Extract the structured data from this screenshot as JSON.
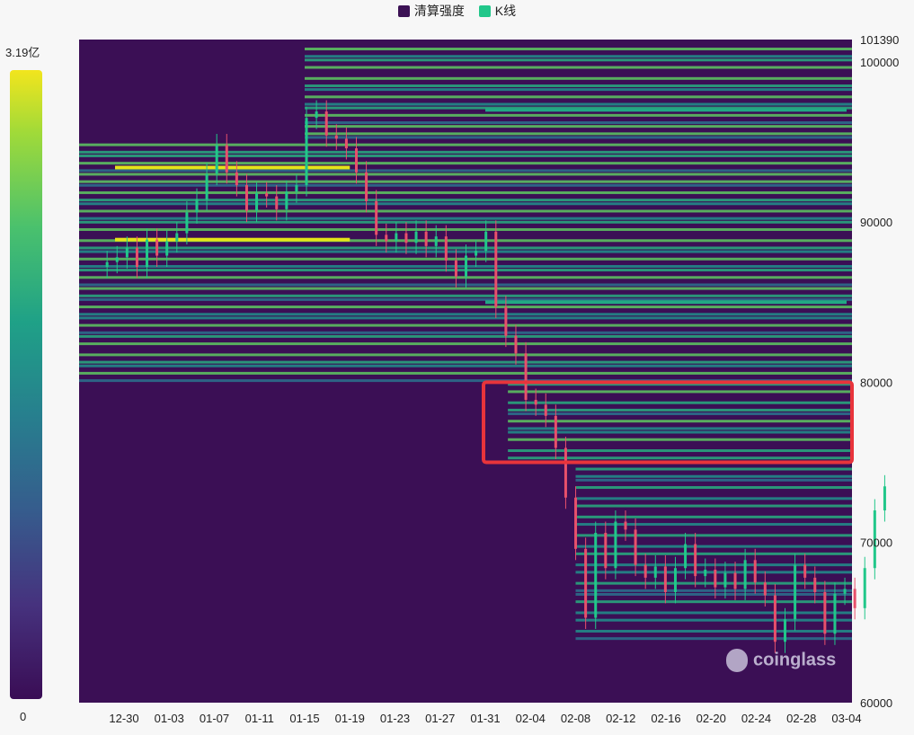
{
  "legend": {
    "items": [
      {
        "label": "清算强度",
        "color": "#3b1154"
      },
      {
        "label": "K线",
        "color": "#21c78a"
      }
    ]
  },
  "colorbar": {
    "max_label": "3.19亿",
    "min_label": "0"
  },
  "watermark": "coinglass",
  "chart_data": {
    "type": "heatmap",
    "title": "",
    "xlabel": "",
    "ylabel": "",
    "x_tick_labels": [
      "12-30",
      "01-03",
      "01-07",
      "01-11",
      "01-15",
      "01-19",
      "01-23",
      "01-27",
      "01-31",
      "02-04",
      "02-08",
      "02-12",
      "02-16",
      "02-20",
      "02-24",
      "02-28",
      "03-04"
    ],
    "y_tick_labels": [
      "101390",
      "100000",
      "90000",
      "80000",
      "70000",
      "60000"
    ],
    "ylim": [
      60000,
      101390
    ],
    "colorscale_range": [
      0,
      319000000
    ],
    "candle_closes": [
      87500,
      87800,
      88400,
      87200,
      88900,
      87900,
      88800,
      89300,
      90600,
      91400,
      93000,
      94800,
      93100,
      92300,
      90700,
      91800,
      91600,
      90800,
      91900,
      92300,
      96500,
      96900,
      95400,
      95200,
      94600,
      93100,
      91300,
      89200,
      88800,
      89300,
      88700,
      89400,
      88500,
      89100,
      87600,
      86600,
      87900,
      88200,
      89400,
      84700,
      82900,
      81800,
      78900,
      78600,
      77900,
      75900,
      72800,
      69600,
      65300,
      70600,
      68400,
      71300,
      70800,
      68600,
      67800,
      68500,
      66900,
      68400,
      69900,
      67900,
      68300,
      67200,
      68100,
      67100,
      68900,
      67500,
      66700,
      63800,
      65200,
      68600,
      67800,
      66900,
      64300,
      66800,
      67100,
      65900,
      68400,
      72000,
      73500
    ],
    "notable_bands": [
      {
        "price": 86000,
        "intensity": "high",
        "ends": "01-25"
      },
      {
        "price": 88900,
        "intensity": "high",
        "ends": "01-19"
      },
      {
        "price": 93400,
        "intensity": "high",
        "ends": "01-19"
      },
      {
        "price": 85000,
        "intensity": "medium",
        "ends": "03-04"
      },
      {
        "price": 97000,
        "intensity": "medium",
        "ends": "03-04"
      }
    ],
    "highlight_box": {
      "price_range": [
        75000,
        80000
      ],
      "from": "01-31",
      "to": "03-04",
      "color": "#e8343b"
    }
  }
}
